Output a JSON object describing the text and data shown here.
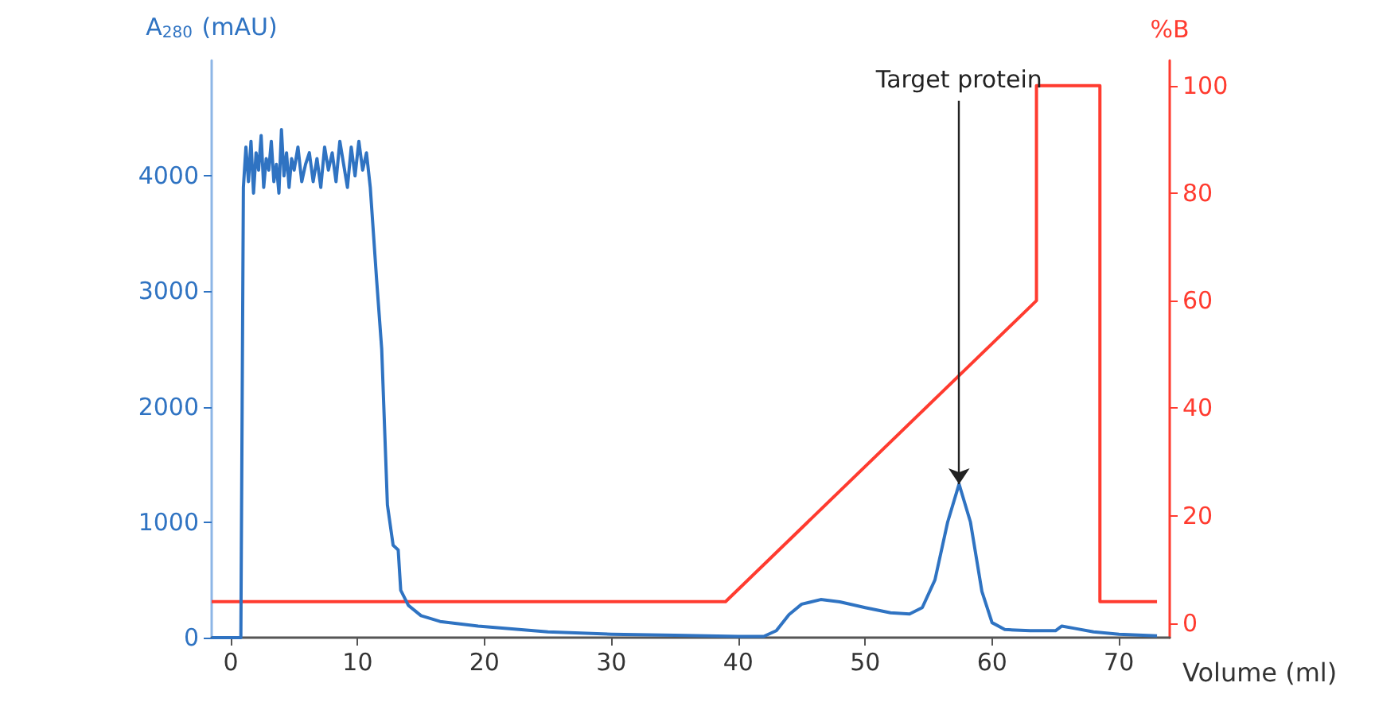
{
  "chart_data": {
    "type": "line",
    "xlabel": "Volume (ml)",
    "ylabel": "A$_{280}$ (mAU)",
    "y2label": "%B",
    "xlim": [
      -1.5,
      74
    ],
    "xticks": [
      0,
      10,
      20,
      30,
      40,
      50,
      60,
      70
    ],
    "ylim": [
      0,
      5000
    ],
    "yticks": [
      0,
      1000,
      2000,
      3000,
      4000
    ],
    "y2lim": [
      -2.7,
      104.7
    ],
    "y2ticks": [
      0,
      20,
      40,
      60,
      80,
      100
    ],
    "grid": false,
    "marker": "none",
    "line_style": "solid",
    "series": [
      {
        "color": "#2f73c2",
        "x": [
          -1.5,
          0.8,
          1.0,
          1.2,
          1.4,
          1.6,
          1.8,
          2.0,
          2.2,
          2.4,
          2.6,
          2.8,
          3.0,
          3.2,
          3.4,
          3.6,
          3.8,
          4.0,
          4.2,
          4.4,
          4.6,
          4.8,
          5.0,
          5.3,
          5.6,
          5.9,
          6.2,
          6.5,
          6.8,
          7.1,
          7.4,
          7.7,
          8.0,
          8.3,
          8.6,
          8.9,
          9.2,
          9.5,
          9.8,
          10.1,
          10.4,
          10.7,
          11.0,
          11.5,
          11.9,
          12.35,
          12.8,
          13.2,
          13.4,
          14.0,
          15,
          16.5,
          19.5,
          25,
          30,
          35,
          40,
          42,
          43,
          44,
          45,
          46.5,
          48,
          50,
          52,
          53.5,
          54.5,
          55.5,
          56.5,
          57.4,
          58.3,
          59.2,
          60,
          61,
          63,
          65,
          65.5,
          66.5,
          68,
          70,
          73
        ],
        "values": [
          0,
          0,
          3900,
          4250,
          3950,
          4300,
          3850,
          4200,
          4050,
          4350,
          3900,
          4150,
          4050,
          4300,
          3950,
          4100,
          3850,
          4400,
          4000,
          4200,
          3900,
          4150,
          4050,
          4250,
          3950,
          4100,
          4200,
          3950,
          4150,
          3900,
          4250,
          4050,
          4200,
          3950,
          4300,
          4100,
          3900,
          4250,
          4000,
          4300,
          4050,
          4200,
          3900,
          3100,
          2500,
          1150,
          800,
          760,
          410,
          280,
          190,
          140,
          100,
          50,
          30,
          20,
          10,
          10,
          60,
          200,
          290,
          330,
          310,
          260,
          215,
          205,
          260,
          500,
          1000,
          1330,
          1000,
          400,
          130,
          70,
          60,
          60,
          100,
          80,
          50,
          30,
          15
        ]
      },
      {
        "color": "#ff3b2f",
        "axis": "y2",
        "x": [
          -1.5,
          39,
          63.5,
          63.5,
          68.5,
          68.5,
          73
        ],
        "values": [
          4,
          4,
          60,
          100,
          100,
          4,
          4
        ]
      }
    ],
    "annotations": [
      {
        "text": "Target protein",
        "x": 57.4,
        "y": 1330
      }
    ]
  }
}
